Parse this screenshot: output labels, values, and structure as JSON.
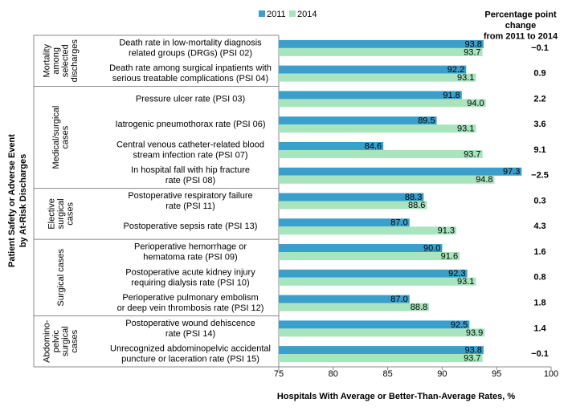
{
  "chart_data": {
    "type": "bar",
    "orientation": "horizontal",
    "ylabel": "Patient Safety or Adverse Event\nby At-Risk Discharges",
    "xlabel": "Hospitals  With Average or Better-Than-Average Rates, %",
    "groups": [
      {
        "name": "Mortality\namong\nselected\ndischarges",
        "categories": [
          "Death rate in low-mortality diagnosis\nrelated groups (DRGs) (PSI 02)",
          "Death rate among surgical inpatients with\nserious treatable complications (PSI 04)"
        ]
      },
      {
        "name": "Medical/surgical\ncases",
        "categories": [
          "Pressure ulcer rate (PSI 03)",
          "Iatrogenic pneumothorax rate (PSI 06)",
          "Central venous catheter-related blood\nstream infection rate (PSI 07)",
          "In hospital fall with hip fracture\nrate (PSI 08)"
        ]
      },
      {
        "name": "Elective\nsurgical\ncases",
        "categories": [
          "Postoperative respiratory failure\nrate (PSI 11)",
          "Postoperative sepsis rate (PSI 13)"
        ]
      },
      {
        "name": "Surgical cases",
        "categories": [
          "Perioperative hemorrhage or\nhematoma rate (PSI 09)",
          "Postoperative acute kidney injury\nrequiring dialysis rate (PSI 10)",
          "Perioperative pulmonary embolism\nor deep vein thrombosis rate (PSI 12)"
        ]
      },
      {
        "name": "Abdomino-\npelvic\nsurgical\ncases",
        "categories": [
          "Postoperative wound dehiscence\nrate (PSI 14)",
          "Unrecognized abdominopelvic accidental\npuncture or laceration rate (PSI 15)"
        ]
      }
    ],
    "series": [
      {
        "name": "2011",
        "color": "#3a9fcb",
        "values": [
          93.8,
          92.2,
          91.8,
          89.5,
          84.6,
          97.3,
          88.3,
          87.0,
          90.0,
          92.3,
          87.0,
          92.5,
          93.8
        ],
        "value_labels": [
          "93.8",
          "92.2",
          "91.8",
          "89.5",
          "84.6",
          "97.3",
          "88.3",
          "87.0",
          "90.0",
          "92.3",
          "87.0",
          "92.5",
          "93.8"
        ]
      },
      {
        "name": "2014",
        "color": "#a8e4bd",
        "values": [
          93.7,
          93.1,
          94.0,
          93.1,
          93.7,
          94.8,
          88.6,
          91.3,
          91.6,
          93.1,
          88.8,
          93.9,
          93.7
        ],
        "value_labels": [
          "93.7",
          "93.1",
          "94.0",
          "93.1",
          "93.7",
          "94.8",
          "88.6",
          "91.3",
          "91.6",
          "93.1",
          "88.8",
          "93.9",
          "93.7"
        ]
      }
    ],
    "change": {
      "title": "Percentage point\nchange\nfrom 2011 to 2014",
      "values": [
        -0.1,
        0.9,
        2.2,
        3.6,
        9.1,
        -2.5,
        0.3,
        4.3,
        1.6,
        0.8,
        1.8,
        1.4,
        -0.1
      ],
      "value_labels": [
        "−0.1",
        "0.9",
        "2.2",
        "3.6",
        "9.1",
        "−2.5",
        "0.3",
        "4.3",
        "1.6",
        "0.8",
        "1.8",
        "1.4",
        "−0.1"
      ]
    },
    "xlim": [
      75,
      100
    ],
    "xticks": [
      75,
      80,
      85,
      90,
      95,
      100
    ]
  }
}
